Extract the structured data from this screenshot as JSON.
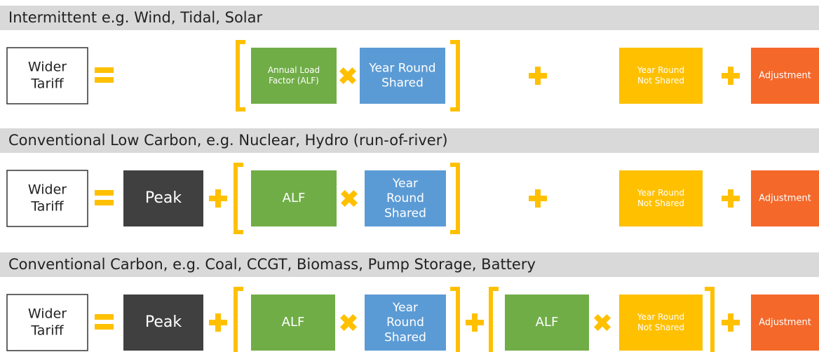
{
  "rows": [
    {
      "header": "Intermittent e.g. Wind, Tidal, Solar",
      "boxes": [
        [
          "Wider",
          "Tariff"
        ],
        [
          "Annual Load",
          "Factor (ALF)"
        ],
        [
          "Year Round",
          "Shared"
        ],
        [
          "Year Round",
          "Not Shared"
        ],
        [
          "Adjustment"
        ]
      ]
    },
    {
      "header": "Conventional Low Carbon, e.g. Nuclear, Hydro (run-of-river)",
      "boxes": [
        [
          "Wider",
          "Tariff"
        ],
        [
          "Peak"
        ],
        [
          "ALF"
        ],
        [
          "Year",
          "Round",
          "Shared"
        ],
        [
          "Year Round",
          "Not Shared"
        ],
        [
          "Adjustment"
        ]
      ]
    },
    {
      "header": "Conventional Carbon, e.g. Coal, CCGT, Biomass, Pump Storage, Battery",
      "boxes": [
        [
          "Wider",
          "Tariff"
        ],
        [
          "Peak"
        ],
        [
          "ALF"
        ],
        [
          "Year",
          "Round",
          "Shared"
        ],
        [
          "ALF"
        ],
        [
          "Year Round",
          "Not Shared"
        ],
        [
          "Adjustment"
        ]
      ]
    }
  ]
}
